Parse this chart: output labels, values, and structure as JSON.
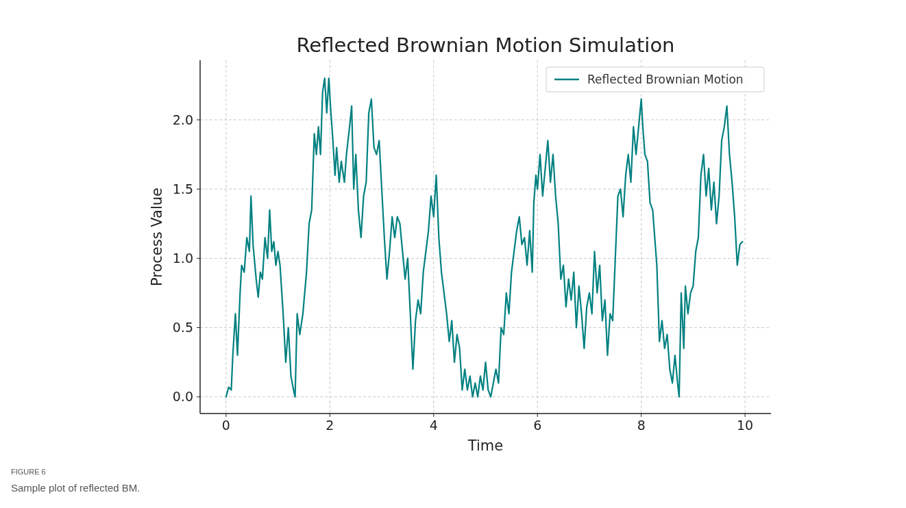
{
  "chart_data": {
    "type": "line",
    "title": "Reflected Brownian Motion Simulation",
    "xlabel": "Time",
    "ylabel": "Process Value",
    "annotations": [
      "FIGURE 6",
      "Sample plot of reflected BM."
    ],
    "xlim": [
      -0.5,
      10.5
    ],
    "xticks": [
      0,
      2,
      4,
      6,
      8,
      10
    ],
    "ylim": [
      -0.12,
      2.43
    ],
    "yticks": [
      {
        "value": 0,
        "label": "0.0"
      },
      {
        "value": 0.5,
        "label": "0.5"
      },
      {
        "value": 1,
        "label": "1.0"
      },
      {
        "value": 1.5,
        "label": "1.5"
      },
      {
        "value": 2,
        "label": "2.0"
      }
    ],
    "grid": true,
    "legend": "top right",
    "line_style": "solid",
    "series": [
      {
        "name": "Reflected Brownian Motion",
        "color": "#008080",
        "x": [
          0,
          0.05,
          0.1,
          0.13,
          0.18,
          0.22,
          0.27,
          0.3,
          0.35,
          0.4,
          0.45,
          0.48,
          0.52,
          0.58,
          0.62,
          0.66,
          0.7,
          0.75,
          0.8,
          0.84,
          0.88,
          0.92,
          0.96,
          1.0,
          1.04,
          1.1,
          1.15,
          1.2,
          1.25,
          1.3,
          1.33,
          1.37,
          1.42,
          1.48,
          1.55,
          1.6,
          1.65,
          1.7,
          1.74,
          1.78,
          1.82,
          1.86,
          1.9,
          1.94,
          1.98,
          2.02,
          2.05,
          2.1,
          2.13,
          2.18,
          2.22,
          2.28,
          2.32,
          2.38,
          2.42,
          2.46,
          2.5,
          2.55,
          2.6,
          2.65,
          2.7,
          2.75,
          2.8,
          2.85,
          2.9,
          2.95,
          3.0,
          3.05,
          3.1,
          3.15,
          3.2,
          3.25,
          3.3,
          3.35,
          3.4,
          3.45,
          3.5,
          3.55,
          3.6,
          3.65,
          3.7,
          3.75,
          3.8,
          3.85,
          3.9,
          3.95,
          4.0,
          4.05,
          4.1,
          4.15,
          4.2,
          4.25,
          4.3,
          4.35,
          4.4,
          4.45,
          4.5,
          4.55,
          4.6,
          4.65,
          4.7,
          4.75,
          4.8,
          4.85,
          4.9,
          4.95,
          5.0,
          5.05,
          5.1,
          5.15,
          5.2,
          5.25,
          5.3,
          5.35,
          5.4,
          5.45,
          5.5,
          5.55,
          5.6,
          5.65,
          5.7,
          5.75,
          5.8,
          5.85,
          5.9,
          5.93,
          5.97,
          6.0,
          6.05,
          6.1,
          6.15,
          6.2,
          6.25,
          6.3,
          6.35,
          6.4,
          6.45,
          6.5,
          6.55,
          6.6,
          6.65,
          6.7,
          6.75,
          6.8,
          6.85,
          6.9,
          6.95,
          7.0,
          7.05,
          7.1,
          7.15,
          7.2,
          7.25,
          7.3,
          7.35,
          7.4,
          7.45,
          7.5,
          7.55,
          7.6,
          7.65,
          7.7,
          7.75,
          7.8,
          7.85,
          7.9,
          7.95,
          8.0,
          8.03,
          8.07,
          8.12,
          8.17,
          8.22,
          8.27,
          8.3,
          8.35,
          8.4,
          8.45,
          8.5,
          8.55,
          8.6,
          8.65,
          8.7,
          8.73,
          8.77,
          8.82,
          8.85,
          8.9,
          8.95,
          9.0,
          9.05,
          9.1,
          9.15,
          9.2,
          9.25,
          9.3,
          9.35,
          9.4,
          9.45,
          9.5,
          9.55,
          9.6,
          9.65,
          9.7,
          9.75,
          9.8,
          9.85,
          9.9,
          9.95
        ],
        "values": [
          0,
          0.07,
          0.05,
          0.3,
          0.6,
          0.3,
          0.75,
          0.95,
          0.9,
          1.15,
          1.05,
          1.45,
          1.1,
          0.85,
          0.72,
          0.9,
          0.85,
          1.15,
          1.0,
          1.35,
          1.05,
          1.12,
          0.95,
          1.05,
          0.95,
          0.6,
          0.25,
          0.5,
          0.15,
          0.05,
          0.0,
          0.6,
          0.45,
          0.6,
          0.9,
          1.25,
          1.35,
          1.9,
          1.75,
          1.95,
          1.75,
          2.2,
          2.3,
          2.05,
          2.3,
          2.05,
          1.9,
          1.6,
          1.8,
          1.55,
          1.7,
          1.55,
          1.75,
          1.95,
          2.1,
          1.5,
          1.75,
          1.35,
          1.15,
          1.45,
          1.55,
          2.05,
          2.15,
          1.8,
          1.75,
          1.85,
          1.5,
          1.15,
          0.85,
          1.05,
          1.3,
          1.15,
          1.3,
          1.25,
          1.05,
          0.85,
          1.0,
          0.6,
          0.2,
          0.55,
          0.7,
          0.6,
          0.9,
          1.05,
          1.2,
          1.45,
          1.3,
          1.6,
          1.15,
          0.9,
          0.75,
          0.6,
          0.4,
          0.55,
          0.25,
          0.45,
          0.35,
          0.05,
          0.2,
          0.05,
          0.15,
          0.0,
          0.1,
          0.0,
          0.15,
          0.05,
          0.25,
          0.05,
          0.0,
          0.1,
          0.2,
          0.1,
          0.5,
          0.45,
          0.75,
          0.6,
          0.9,
          1.05,
          1.2,
          1.3,
          1.1,
          1.15,
          0.95,
          1.2,
          0.9,
          1.4,
          1.6,
          1.5,
          1.75,
          1.45,
          1.65,
          1.85,
          1.55,
          1.75,
          1.45,
          1.25,
          0.85,
          0.95,
          0.65,
          0.85,
          0.7,
          0.9,
          0.5,
          0.8,
          0.6,
          0.35,
          0.65,
          0.75,
          0.6,
          1.05,
          0.75,
          0.95,
          0.55,
          0.7,
          0.3,
          0.6,
          0.55,
          1.0,
          1.45,
          1.5,
          1.3,
          1.6,
          1.75,
          1.55,
          1.95,
          1.75,
          1.95,
          2.15,
          1.95,
          1.75,
          1.7,
          1.4,
          1.35,
          1.1,
          0.95,
          0.4,
          0.55,
          0.35,
          0.45,
          0.2,
          0.1,
          0.3,
          0.1,
          0.0,
          0.75,
          0.35,
          0.8,
          0.6,
          0.75,
          0.8,
          1.05,
          1.15,
          1.6,
          1.75,
          1.45,
          1.65,
          1.35,
          1.55,
          1.25,
          1.45,
          1.85,
          1.95,
          2.1,
          1.75,
          1.55,
          1.3,
          0.95,
          1.1,
          1.12
        ]
      }
    ]
  }
}
